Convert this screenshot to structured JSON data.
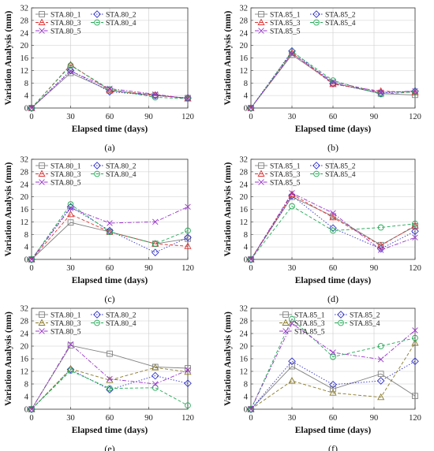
{
  "figure": {
    "panels": [
      {
        "caption": "(a)",
        "chart_data": {
          "type": "line",
          "x": [
            0,
            30,
            60,
            95,
            120
          ],
          "xlim": [
            0,
            120
          ],
          "xticks": [
            0,
            30,
            60,
            90,
            120
          ],
          "ylim": [
            0,
            32
          ],
          "yticks": [
            0,
            4,
            8,
            12,
            16,
            20,
            24,
            28,
            32
          ],
          "xlabel": "Elapsed time (days)",
          "ylabel": "Variation Analysis (mm)",
          "grid": true,
          "legend_position": "top-left",
          "legend_columns": 2,
          "series": [
            {
              "name": "STA.80_1",
              "values": [
                0,
                11.2,
                5.6,
                4.0,
                3.2
              ],
              "color": "#808080",
              "marker": "square",
              "dash": "solid"
            },
            {
              "name": "STA.80_2",
              "values": [
                0,
                12.0,
                5.2,
                4.0,
                3.2
              ],
              "color": "#3333cc",
              "marker": "diamond",
              "dash": "dot"
            },
            {
              "name": "STA.80_3",
              "values": [
                0,
                13.8,
                5.6,
                4.2,
                3.0
              ],
              "color": "#dd3333",
              "marker": "triangle",
              "dash": "dash"
            },
            {
              "name": "STA.80_4",
              "values": [
                0,
                13.6,
                6.0,
                3.4,
                3.0
              ],
              "color": "#22aa55",
              "marker": "circle",
              "dash": "dash"
            },
            {
              "name": "STA.80_5",
              "values": [
                0,
                11.8,
                6.2,
                4.4,
                3.0
              ],
              "color": "#9933cc",
              "marker": "x",
              "dash": "dashdot"
            }
          ]
        }
      },
      {
        "caption": "(b)",
        "chart_data": {
          "type": "line",
          "x": [
            0,
            30,
            60,
            95,
            120
          ],
          "xlim": [
            0,
            120
          ],
          "xticks": [
            0,
            30,
            60,
            90,
            120
          ],
          "ylim": [
            0,
            32
          ],
          "yticks": [
            0,
            4,
            8,
            12,
            16,
            20,
            24,
            28,
            32
          ],
          "xlabel": "Elapsed time (days)",
          "ylabel": "Variation Analysis (mm)",
          "grid": true,
          "legend_position": "top-left",
          "legend_columns": 2,
          "series": [
            {
              "name": "STA.85_1",
              "values": [
                0,
                17.0,
                8.0,
                4.6,
                4.2
              ],
              "color": "#808080",
              "marker": "square",
              "dash": "solid"
            },
            {
              "name": "STA.85_2",
              "values": [
                0,
                18.2,
                7.8,
                4.8,
                5.4
              ],
              "color": "#3333cc",
              "marker": "diamond",
              "dash": "dot"
            },
            {
              "name": "STA.85_3",
              "values": [
                0,
                17.6,
                7.6,
                5.4,
                5.0
              ],
              "color": "#dd3333",
              "marker": "triangle",
              "dash": "dash"
            },
            {
              "name": "STA.85_4",
              "values": [
                0,
                18.0,
                8.8,
                4.4,
                5.2
              ],
              "color": "#22aa55",
              "marker": "circle",
              "dash": "dash"
            },
            {
              "name": "STA.85_5",
              "values": [
                0,
                17.4,
                8.4,
                5.0,
                5.4
              ],
              "color": "#9933cc",
              "marker": "x",
              "dash": "dashdot"
            }
          ]
        }
      },
      {
        "caption": "(c)",
        "chart_data": {
          "type": "line",
          "x": [
            0,
            30,
            60,
            95,
            120
          ],
          "xlim": [
            0,
            120
          ],
          "xticks": [
            0,
            30,
            60,
            90,
            120
          ],
          "ylim": [
            0,
            32
          ],
          "yticks": [
            0,
            4,
            8,
            12,
            16,
            20,
            24,
            28,
            32
          ],
          "xlabel": "Elapsed time (days)",
          "ylabel": "Variation Analysis (mm)",
          "grid": true,
          "legend_position": "top-left",
          "legend_columns": 2,
          "series": [
            {
              "name": "STA.80_1",
              "values": [
                0,
                11.8,
                8.8,
                5.0,
                6.6
              ],
              "color": "#808080",
              "marker": "square",
              "dash": "solid"
            },
            {
              "name": "STA.80_2",
              "values": [
                0,
                16.8,
                9.2,
                2.2,
                7.0
              ],
              "color": "#3333cc",
              "marker": "diamond",
              "dash": "dot"
            },
            {
              "name": "STA.80_3",
              "values": [
                0,
                14.4,
                8.8,
                5.0,
                4.2
              ],
              "color": "#dd3333",
              "marker": "triangle",
              "dash": "dash"
            },
            {
              "name": "STA.80_4",
              "values": [
                0,
                17.6,
                8.8,
                5.0,
                9.2
              ],
              "color": "#22aa55",
              "marker": "circle",
              "dash": "dash"
            },
            {
              "name": "STA.80_5",
              "values": [
                0,
                16.4,
                11.6,
                12.0,
                16.8
              ],
              "color": "#9933cc",
              "marker": "x",
              "dash": "dashdot"
            }
          ]
        }
      },
      {
        "caption": "(d)",
        "chart_data": {
          "type": "line",
          "x": [
            0,
            30,
            60,
            95,
            120
          ],
          "xlim": [
            0,
            120
          ],
          "xticks": [
            0,
            30,
            60,
            90,
            120
          ],
          "ylim": [
            0,
            32
          ],
          "yticks": [
            0,
            4,
            8,
            12,
            16,
            20,
            24,
            28,
            32
          ],
          "xlabel": "Elapsed time (days)",
          "ylabel": "Variation Analysis (mm)",
          "grid": true,
          "legend_position": "top-left",
          "legend_columns": 2,
          "series": [
            {
              "name": "STA.85_1",
              "values": [
                0,
                20.0,
                13.8,
                4.6,
                10.6
              ],
              "color": "#808080",
              "marker": "square",
              "dash": "solid"
            },
            {
              "name": "STA.85_2",
              "values": [
                0,
                20.4,
                10.0,
                3.4,
                9.0
              ],
              "color": "#3333cc",
              "marker": "diamond",
              "dash": "dot"
            },
            {
              "name": "STA.85_3",
              "values": [
                0,
                20.8,
                13.4,
                4.4,
                10.8
              ],
              "color": "#dd3333",
              "marker": "triangle",
              "dash": "dash"
            },
            {
              "name": "STA.85_4",
              "values": [
                0,
                17.0,
                9.2,
                10.2,
                11.4
              ],
              "color": "#22aa55",
              "marker": "circle",
              "dash": "dash"
            },
            {
              "name": "STA.85_5",
              "values": [
                0,
                21.2,
                14.8,
                3.0,
                7.0
              ],
              "color": "#9933cc",
              "marker": "x",
              "dash": "dashdot"
            }
          ]
        }
      },
      {
        "caption": "(e)",
        "chart_data": {
          "type": "line",
          "x": [
            0,
            30,
            60,
            95,
            120
          ],
          "xlim": [
            0,
            120
          ],
          "xticks": [
            0,
            30,
            60,
            90,
            120
          ],
          "ylim": [
            0,
            32
          ],
          "yticks": [
            0,
            4,
            8,
            12,
            16,
            20,
            24,
            28,
            32
          ],
          "xlabel": "Elapsed time (days)",
          "ylabel": "Variation Analysis (mm)",
          "grid": true,
          "legend_position": "top-left",
          "legend_columns": 2,
          "series": [
            {
              "name": "STA.80_1",
              "values": [
                0,
                20.2,
                17.6,
                13.4,
                13.0
              ],
              "color": "#808080",
              "marker": "square",
              "dash": "solid"
            },
            {
              "name": "STA.80_2",
              "values": [
                0,
                12.6,
                6.2,
                10.6,
                8.2
              ],
              "color": "#3333cc",
              "marker": "diamond",
              "dash": "dot"
            },
            {
              "name": "STA.80_3",
              "values": [
                0,
                12.8,
                9.2,
                13.2,
                11.8
              ],
              "color": "#8a7a2a",
              "marker": "triangle",
              "dash": "dash"
            },
            {
              "name": "STA.80_4",
              "values": [
                0,
                12.2,
                6.6,
                6.8,
                1.2
              ],
              "color": "#22aa55",
              "marker": "circle",
              "dash": "dash"
            },
            {
              "name": "STA.80_5",
              "values": [
                0,
                20.6,
                9.6,
                8.0,
                12.4
              ],
              "color": "#9933cc",
              "marker": "x",
              "dash": "dashdot"
            }
          ]
        }
      },
      {
        "caption": "(f)",
        "chart_data": {
          "type": "line",
          "x": [
            0,
            30,
            60,
            95,
            120
          ],
          "xlim": [
            0,
            120
          ],
          "xticks": [
            0,
            30,
            60,
            90,
            120
          ],
          "ylim": [
            0,
            32
          ],
          "yticks": [
            0,
            4,
            8,
            12,
            16,
            20,
            24,
            28,
            32
          ],
          "xlabel": "Elapsed time (days)",
          "ylabel": "Variation Analysis (mm)",
          "grid": true,
          "legend_position": "top-center",
          "legend_columns": 2,
          "series": [
            {
              "name": "STA.85_1",
              "values": [
                0,
                13.6,
                6.4,
                11.2,
                4.2
              ],
              "color": "#808080",
              "marker": "square",
              "dash": "solid"
            },
            {
              "name": "STA.85_2",
              "values": [
                0,
                15.2,
                7.8,
                9.0,
                15.2
              ],
              "color": "#3333cc",
              "marker": "diamond",
              "dash": "dot"
            },
            {
              "name": "STA.85_3",
              "values": [
                0,
                9.0,
                5.2,
                3.8,
                21.0
              ],
              "color": "#8a7a2a",
              "marker": "triangle",
              "dash": "dash"
            },
            {
              "name": "STA.85_4",
              "values": [
                0,
                28.6,
                16.6,
                20.0,
                22.6
              ],
              "color": "#22aa55",
              "marker": "circle",
              "dash": "dash"
            },
            {
              "name": "STA.85_5",
              "values": [
                0,
                27.2,
                18.0,
                15.8,
                25.0
              ],
              "color": "#9933cc",
              "marker": "x",
              "dash": "dashdot"
            }
          ]
        }
      }
    ]
  }
}
